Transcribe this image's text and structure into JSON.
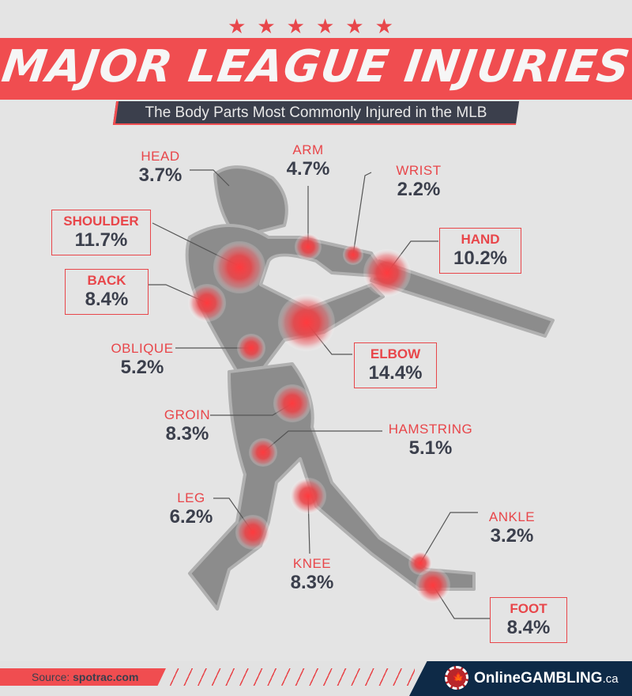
{
  "header": {
    "stars": "★★★★★★",
    "title": "MAJOR LEAGUE INJURIES",
    "subtitle": "The Body Parts Most Commonly Injured in the MLB"
  },
  "colors": {
    "accent": "#f04d50",
    "dark": "#3b3f4c",
    "brand": "#0e2a47"
  },
  "injuries": [
    {
      "name": "HEAD",
      "value": "3.7%"
    },
    {
      "name": "ARM",
      "value": "4.7%"
    },
    {
      "name": "WRIST",
      "value": "2.2%"
    },
    {
      "name": "SHOULDER",
      "value": "11.7%"
    },
    {
      "name": "HAND",
      "value": "10.2%"
    },
    {
      "name": "BACK",
      "value": "8.4%"
    },
    {
      "name": "OBLIQUE",
      "value": "5.2%"
    },
    {
      "name": "ELBOW",
      "value": "14.4%"
    },
    {
      "name": "GROIN",
      "value": "8.3%"
    },
    {
      "name": "HAMSTRING",
      "value": "5.1%"
    },
    {
      "name": "LEG",
      "value": "6.2%"
    },
    {
      "name": "KNEE",
      "value": "8.3%"
    },
    {
      "name": "ANKLE",
      "value": "3.2%"
    },
    {
      "name": "FOOT",
      "value": "8.4%"
    }
  ],
  "footer": {
    "source_label": "Source:",
    "source": "spotrac.com",
    "brand": "OnlineGAMBLING",
    "brand_suffix": ".ca",
    "logo_icon": "maple-leaf-chip-icon"
  }
}
